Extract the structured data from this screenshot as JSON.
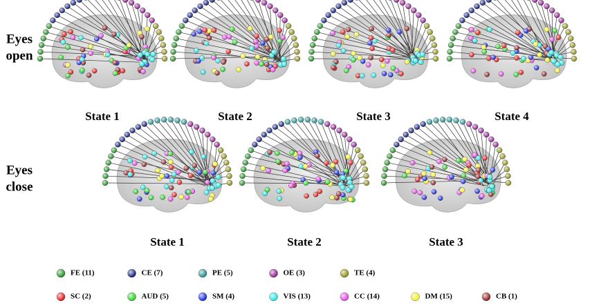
{
  "rows": [
    {
      "label": [
        "Eyes",
        "open"
      ],
      "states": [
        "State 1",
        "State 2",
        "State 3",
        "State 4"
      ]
    },
    {
      "label": [
        "Eyes",
        "close"
      ],
      "states": [
        "State 1",
        "State 2",
        "State 3"
      ]
    }
  ],
  "legend": [
    {
      "label": "FE (11)",
      "color": "#1e8a1e"
    },
    {
      "label": "CE (7)",
      "color": "#0d1a7a"
    },
    {
      "label": "PE (5)",
      "color": "#1f8a8a"
    },
    {
      "label": "OE (3)",
      "color": "#8a1a8a"
    },
    {
      "label": "TE (4)",
      "color": "#8a8a10"
    },
    {
      "label": "SC (2)",
      "color": "#e01010"
    },
    {
      "label": "AUD (5)",
      "color": "#20d020"
    },
    {
      "label": "SM (4)",
      "color": "#1020e0"
    },
    {
      "label": "VIS (13)",
      "color": "#20e0e0"
    },
    {
      "label": "CC (14)",
      "color": "#e040e0"
    },
    {
      "label": "DM (15)",
      "color": "#f0f020"
    },
    {
      "label": "CB (1)",
      "color": "#8a1a1a"
    }
  ]
}
